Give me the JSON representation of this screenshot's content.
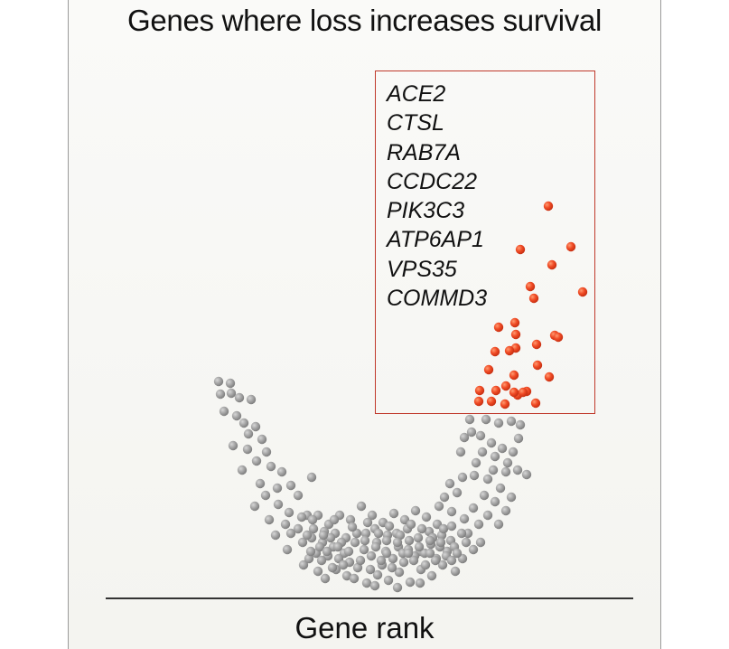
{
  "chart_data": {
    "type": "scatter",
    "title": "Genes where loss increases survival",
    "xlabel": "Gene rank",
    "ylabel": "",
    "grid": false,
    "highlight_box_label_list": [
      "ACE2",
      "CTSL",
      "RAB7A",
      "CCDC22",
      "PIK3C3",
      "ATP6AP1",
      "VPS35",
      "COMMD3"
    ],
    "colors": {
      "hit": "#f04a24",
      "background": "#9a9a9a",
      "box": "#c0392b"
    },
    "series": [
      {
        "name": "",
        "color": "#9a9a9a",
        "shape": "U-shaped cloud of gene scores",
        "points": [
          [
            242,
            422
          ],
          [
            255,
            424
          ],
          [
            244,
            436
          ],
          [
            256,
            435
          ],
          [
            265,
            440
          ],
          [
            278,
            442
          ],
          [
            248,
            455
          ],
          [
            262,
            460
          ],
          [
            270,
            468
          ],
          [
            283,
            472
          ],
          [
            275,
            480
          ],
          [
            290,
            486
          ],
          [
            258,
            493
          ],
          [
            274,
            497
          ],
          [
            295,
            500
          ],
          [
            284,
            510
          ],
          [
            268,
            520
          ],
          [
            300,
            516
          ],
          [
            312,
            522
          ],
          [
            345,
            528
          ],
          [
            288,
            535
          ],
          [
            307,
            540
          ],
          [
            322,
            537
          ],
          [
            294,
            548
          ],
          [
            330,
            548
          ],
          [
            308,
            558
          ],
          [
            282,
            560
          ],
          [
            320,
            567
          ],
          [
            340,
            570
          ],
          [
            298,
            575
          ],
          [
            316,
            580
          ],
          [
            330,
            585
          ],
          [
            305,
            592
          ],
          [
            345,
            595
          ],
          [
            318,
            608
          ],
          [
            350,
            612
          ],
          [
            336,
            625
          ],
          [
            352,
            632
          ],
          [
            360,
            640
          ],
          [
            372,
            630
          ],
          [
            384,
            637
          ],
          [
            396,
            628
          ],
          [
            406,
            645
          ],
          [
            418,
            636
          ],
          [
            430,
            642
          ],
          [
            442,
            633
          ],
          [
            454,
            644
          ],
          [
            466,
            630
          ],
          [
            478,
            637
          ],
          [
            490,
            625
          ],
          [
            504,
            632
          ],
          [
            512,
            618
          ],
          [
            524,
            608
          ],
          [
            532,
            600
          ],
          [
            518,
            590
          ],
          [
            530,
            580
          ],
          [
            540,
            570
          ],
          [
            552,
            580
          ],
          [
            560,
            565
          ],
          [
            548,
            555
          ],
          [
            566,
            550
          ],
          [
            554,
            540
          ],
          [
            540,
            530
          ],
          [
            525,
            526
          ],
          [
            512,
            528
          ],
          [
            498,
            535
          ],
          [
            506,
            545
          ],
          [
            492,
            550
          ],
          [
            486,
            560
          ],
          [
            500,
            566
          ],
          [
            514,
            574
          ],
          [
            524,
            562
          ],
          [
            536,
            548
          ],
          [
            546,
            520
          ],
          [
            560,
            522
          ],
          [
            573,
            520
          ],
          [
            583,
            525
          ],
          [
            568,
            500
          ],
          [
            556,
            496
          ],
          [
            544,
            490
          ],
          [
            532,
            482
          ],
          [
            522,
            478
          ],
          [
            514,
            484
          ],
          [
            520,
            464
          ],
          [
            538,
            464
          ],
          [
            552,
            468
          ],
          [
            566,
            466
          ],
          [
            576,
            470
          ],
          [
            574,
            485
          ],
          [
            562,
            512
          ],
          [
            527,
            512
          ],
          [
            534,
            500
          ],
          [
            548,
            505
          ],
          [
            510,
            500
          ],
          [
            400,
            560
          ],
          [
            412,
            570
          ],
          [
            424,
            578
          ],
          [
            436,
            568
          ],
          [
            448,
            575
          ],
          [
            460,
            565
          ],
          [
            472,
            572
          ],
          [
            484,
            580
          ],
          [
            388,
            575
          ],
          [
            376,
            570
          ],
          [
            364,
            580
          ],
          [
            352,
            570
          ],
          [
            405,
            590
          ],
          [
            417,
            600
          ],
          [
            429,
            592
          ],
          [
            441,
            605
          ],
          [
            453,
            598
          ],
          [
            465,
            610
          ],
          [
            477,
            602
          ],
          [
            489,
            592
          ],
          [
            393,
            600
          ],
          [
            381,
            612
          ],
          [
            369,
            605
          ],
          [
            357,
            600
          ],
          [
            399,
            620
          ],
          [
            411,
            615
          ],
          [
            423,
            625
          ],
          [
            435,
            618
          ],
          [
            447,
            622
          ],
          [
            459,
            615
          ],
          [
            471,
            625
          ],
          [
            483,
            618
          ],
          [
            495,
            610
          ],
          [
            387,
            622
          ],
          [
            375,
            618
          ],
          [
            363,
            615
          ],
          [
            403,
            608
          ],
          [
            415,
            585
          ],
          [
            427,
            610
          ],
          [
            439,
            590
          ],
          [
            451,
            585
          ],
          [
            463,
            595
          ],
          [
            475,
            588
          ],
          [
            487,
            605
          ],
          [
            499,
            598
          ],
          [
            511,
            590
          ],
          [
            395,
            590
          ],
          [
            383,
            595
          ],
          [
            371,
            590
          ],
          [
            359,
            588
          ],
          [
            347,
            585
          ],
          [
            335,
            600
          ],
          [
            407,
            578
          ],
          [
            419,
            590
          ],
          [
            431,
            582
          ],
          [
            443,
            592
          ],
          [
            455,
            580
          ],
          [
            467,
            585
          ],
          [
            479,
            595
          ],
          [
            491,
            585
          ],
          [
            503,
            605
          ],
          [
            390,
            583
          ],
          [
            378,
            600
          ],
          [
            366,
            595
          ],
          [
            354,
            605
          ],
          [
            342,
            618
          ],
          [
            410,
            630
          ],
          [
            422,
            620
          ],
          [
            434,
            628
          ],
          [
            446,
            612
          ],
          [
            458,
            620
          ],
          [
            470,
            612
          ],
          [
            482,
            620
          ],
          [
            494,
            615
          ],
          [
            506,
            612
          ],
          [
            380,
            625
          ],
          [
            368,
            628
          ],
          [
            356,
            620
          ],
          [
            344,
            610
          ],
          [
            415,
            648
          ],
          [
            440,
            650
          ],
          [
            465,
            645
          ],
          [
            392,
            640
          ],
          [
            428,
            598
          ],
          [
            452,
            608
          ],
          [
            476,
            598
          ],
          [
            500,
            582
          ],
          [
            516,
            600
          ],
          [
            370,
            575
          ],
          [
            358,
            592
          ],
          [
            346,
            575
          ],
          [
            334,
            572
          ],
          [
            322,
            590
          ],
          [
            340,
            592
          ],
          [
            404,
            598
          ],
          [
            416,
            605
          ],
          [
            428,
            612
          ],
          [
            440,
            600
          ],
          [
            452,
            612
          ],
          [
            464,
            605
          ],
          [
            476,
            612
          ],
          [
            488,
            600
          ],
          [
            500,
            620
          ],
          [
            386,
            610
          ],
          [
            374,
            605
          ],
          [
            362,
            610
          ]
        ]
      },
      {
        "name": "",
        "color": "#f04a24",
        "shape": "top-ranked hits",
        "points": [
          [
            607,
            228
          ],
          [
            632,
            273
          ],
          [
            576,
            276
          ],
          [
            611,
            293
          ],
          [
            645,
            323
          ],
          [
            587,
            317
          ],
          [
            591,
            330
          ],
          [
            570,
            357
          ],
          [
            552,
            362
          ],
          [
            571,
            370
          ],
          [
            614,
            371
          ],
          [
            618,
            373
          ],
          [
            594,
            381
          ],
          [
            571,
            385
          ],
          [
            564,
            388
          ],
          [
            548,
            389
          ],
          [
            595,
            404
          ],
          [
            541,
            409
          ],
          [
            569,
            415
          ],
          [
            608,
            417
          ],
          [
            560,
            427
          ],
          [
            531,
            432
          ],
          [
            549,
            432
          ],
          [
            573,
            437
          ],
          [
            583,
            433
          ],
          [
            579,
            434
          ],
          [
            569,
            434
          ],
          [
            544,
            444
          ],
          [
            530,
            444
          ],
          [
            559,
            447
          ],
          [
            593,
            446
          ]
        ]
      }
    ]
  }
}
